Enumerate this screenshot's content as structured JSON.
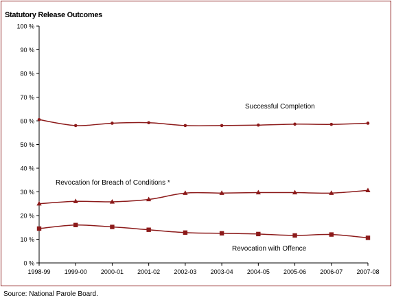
{
  "title": "Statutory Release Outcomes",
  "source": "Source:  National Parole Board.",
  "chart_data": {
    "type": "line",
    "title": "Statutory Release Outcomes",
    "categories": [
      "1998-99",
      "1999-00",
      "2000-01",
      "2001-02",
      "2002-03",
      "2003-04",
      "2004-05",
      "2005-06",
      "2006-07",
      "2007-08"
    ],
    "y_tick_labels": [
      "0 %",
      "10 %",
      "20 %",
      "30 %",
      "40 %",
      "50 %",
      "60 %",
      "70 %",
      "80 %",
      "90 %",
      "100 %"
    ],
    "ylim": [
      0,
      100
    ],
    "grid": false,
    "legend": "none",
    "series": [
      {
        "name": "Successful Completion",
        "color": "#8c1a1a",
        "marker": "circle",
        "values": [
          60.5,
          58.0,
          59.0,
          59.2,
          58.0,
          58.0,
          58.2,
          58.6,
          58.5,
          59.0
        ]
      },
      {
        "name": "Revocation for Breach of Conditions *",
        "color": "#8c1a1a",
        "marker": "triangle",
        "values": [
          25.0,
          26.0,
          25.8,
          26.8,
          29.5,
          29.5,
          29.7,
          29.7,
          29.5,
          30.6
        ]
      },
      {
        "name": "Revocation with Offence",
        "color": "#8c1a1a",
        "marker": "square",
        "values": [
          14.5,
          16.0,
          15.2,
          14.0,
          12.8,
          12.5,
          12.2,
          11.6,
          12.0,
          10.6
        ]
      }
    ]
  }
}
